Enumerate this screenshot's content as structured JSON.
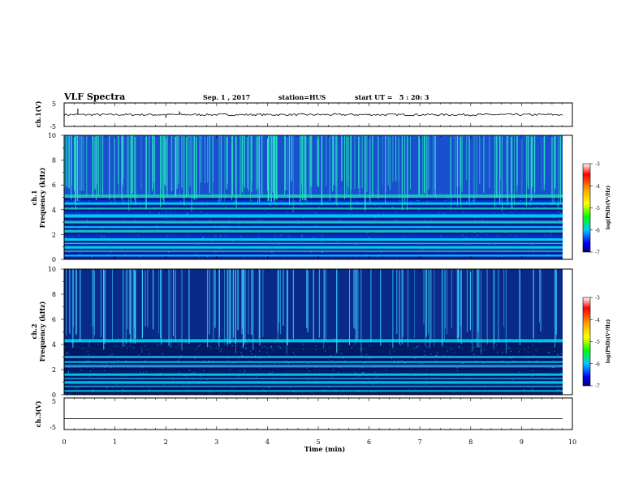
{
  "header": {
    "title": "VLF Spectra",
    "date": "Sep. 1 , 2017",
    "station": "station=HUS",
    "start": "start UT =   5 : 20: 3"
  },
  "colors": {
    "ch1_bg_base": "#0a2fbf",
    "ch2_bg_base": "#001a66",
    "ch1_band": "#1fd6c0",
    "ch2_band": "#2aa6e6",
    "line": "#000000",
    "colormap": [
      "#ffffff",
      "#ff0000",
      "#ffa500",
      "#ffff00",
      "#00ff00",
      "#00c8ff",
      "#0000ff",
      "#00007a"
    ]
  },
  "chart_data": [
    {
      "type": "line",
      "panel": "ch1-voltage",
      "ylabel": "ch.1(V)",
      "ylim": [
        -5,
        5
      ],
      "yticks": [
        "5",
        "-5"
      ],
      "xlim": [
        0,
        10
      ],
      "approx_level": 0,
      "spikes": [
        {
          "x": 0.27,
          "y": 2.6
        },
        {
          "x": 2.27,
          "y": 1.4
        },
        {
          "x": 2.0,
          "y": -1.4
        }
      ]
    },
    {
      "type": "heatmap",
      "panel": "ch1-spectrogram",
      "ylabel_line1": "ch.1",
      "ylabel_line2": "Frequency (kHz)",
      "ylim": [
        0,
        10
      ],
      "yticks": [
        "0",
        "2",
        "4",
        "6",
        "8",
        "10"
      ],
      "xlim": [
        0,
        10
      ],
      "bands_khz": [
        0.3,
        0.7,
        1.0,
        1.3,
        1.6,
        2.3,
        2.6,
        3.0,
        3.5,
        4.1,
        4.5,
        5.1
      ],
      "colorbar": {
        "label": "log(PSD)(V²/Hz)",
        "ticks": [
          "-3",
          "-4",
          "-5",
          "-6",
          "-7"
        ],
        "range": [
          -7,
          -3
        ]
      }
    },
    {
      "type": "heatmap",
      "panel": "ch2-spectrogram",
      "ylabel_line1": "ch.2",
      "ylabel_line2": "Frequency (kHz)",
      "ylim": [
        0,
        10
      ],
      "yticks": [
        "0",
        "2",
        "4",
        "6",
        "8",
        "10"
      ],
      "xlim": [
        0,
        10
      ],
      "bands_khz": [
        0.3,
        0.7,
        1.0,
        1.3,
        1.6,
        2.3,
        2.6,
        3.0,
        4.3
      ],
      "colorbar": {
        "label": "log(PSD)(V²/Hz)",
        "ticks": [
          "-3",
          "-4",
          "-5",
          "-6",
          "-7"
        ],
        "range": [
          -7,
          -3
        ]
      }
    },
    {
      "type": "line",
      "panel": "ch3-voltage",
      "ylabel": "ch.3(V)",
      "ylim": [
        -5,
        5
      ],
      "yticks": [
        "5",
        "-5"
      ],
      "xlim": [
        0,
        10
      ],
      "approx_level": -1.5,
      "xlabel": "Time (min)",
      "xticks": [
        "0",
        "1",
        "2",
        "3",
        "4",
        "5",
        "6",
        "7",
        "8",
        "9",
        "10"
      ]
    }
  ]
}
